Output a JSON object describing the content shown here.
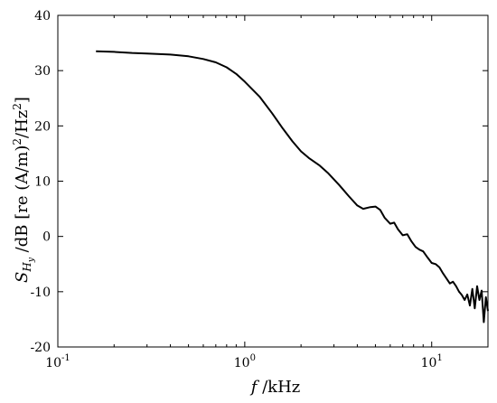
{
  "chart_data": {
    "type": "line",
    "title": "",
    "xscale": "log",
    "xlim": [
      0.1,
      20
    ],
    "ylim": [
      -20,
      40
    ],
    "grid": false,
    "legend": "none",
    "colors": {
      "line": "#000000",
      "axes": "#000000",
      "background": "#ffffff"
    },
    "x_ticks": [
      {
        "value": 0.1,
        "base": "10",
        "exp": "-1"
      },
      {
        "value": 1,
        "base": "10",
        "exp": "0"
      },
      {
        "value": 10,
        "base": "10",
        "exp": "1"
      }
    ],
    "y_ticks": [
      {
        "value": -20,
        "label": "-20"
      },
      {
        "value": -10,
        "label": "-10"
      },
      {
        "value": 0,
        "label": "0"
      },
      {
        "value": 10,
        "label": "10"
      },
      {
        "value": 20,
        "label": "20"
      },
      {
        "value": 30,
        "label": "30"
      },
      {
        "value": 40,
        "label": "40"
      }
    ],
    "xlabel": {
      "var": "f",
      "rest": " /kHz"
    },
    "ylabel": {
      "var": "S",
      "sub": "H",
      "subsub": "y",
      "rest1": " /dB [re (A/m)",
      "sup1": "2",
      "rest2": "/Hz",
      "sup2": "2",
      "rest3": "]"
    },
    "series": [
      {
        "x": [
          0.16,
          0.2,
          0.25,
          0.3,
          0.4,
          0.5,
          0.6,
          0.7,
          0.8,
          0.9,
          1.0,
          1.2,
          1.4,
          1.6,
          1.8,
          2.0,
          2.2,
          2.5,
          2.8,
          3.2,
          3.6,
          4.0,
          4.3,
          4.7,
          5.0,
          5.3,
          5.6,
          6.0,
          6.3,
          6.6,
          7.0,
          7.4,
          7.8,
          8.2,
          8.6,
          9.0,
          9.5,
          10.0,
          10.5,
          11.0,
          11.5,
          12.0,
          12.5,
          13.0,
          13.5,
          14.0,
          14.5,
          15.0,
          15.5,
          16.0,
          16.5,
          17.0,
          17.5,
          18.0,
          18.5,
          19.0,
          19.5,
          20.0
        ],
        "y": [
          33.5,
          33.4,
          33.2,
          33.1,
          32.9,
          32.6,
          32.1,
          31.5,
          30.6,
          29.4,
          28.0,
          25.3,
          22.3,
          19.5,
          17.2,
          15.4,
          14.2,
          12.9,
          11.4,
          9.3,
          7.3,
          5.6,
          5.0,
          5.3,
          5.4,
          4.8,
          3.4,
          2.3,
          2.5,
          1.3,
          0.2,
          0.4,
          -0.9,
          -1.9,
          -2.4,
          -2.7,
          -3.8,
          -4.8,
          -5.0,
          -5.6,
          -6.7,
          -7.6,
          -8.5,
          -8.2,
          -9.0,
          -10.0,
          -10.6,
          -11.5,
          -10.5,
          -12.5,
          -9.5,
          -13.0,
          -9.0,
          -11.5,
          -9.8,
          -15.5,
          -11.0,
          -13.5
        ]
      }
    ]
  }
}
